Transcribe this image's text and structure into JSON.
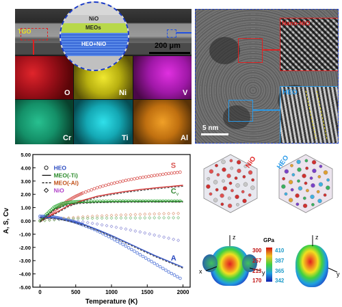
{
  "sem": {
    "tgo": "TGO",
    "layers": [
      "NiO",
      "MEOs",
      "HEO+NiO"
    ],
    "scale": "200 μm",
    "maps": [
      "O",
      "Ni",
      "V",
      "Cr",
      "Ti",
      "Al"
    ],
    "colors": {
      "O": "#c0141b",
      "Ni": "#d8d21a",
      "V": "#c020c8",
      "Cr": "#19a57a",
      "Ti": "#1bc4cf",
      "Al": "#d98618"
    }
  },
  "tem": {
    "nano_label": "Nano-NiO",
    "heo_label": "HEO",
    "scale": "5 nm"
  },
  "chart_data": {
    "type": "line",
    "xlabel": "Temperature (K)",
    "ylabel": "A, S, Cv",
    "xlim": [
      -100,
      2100
    ],
    "ylim": [
      -5,
      5
    ],
    "xticks": [
      0,
      500,
      1000,
      1500,
      2000
    ],
    "yticks": [
      "5.00",
      "4.00",
      "3.00",
      "2.00",
      "1.00",
      "0.00",
      "-1.00",
      "-2.00",
      "-3.00",
      "-4.00",
      "-5.00"
    ],
    "legend": [
      {
        "name": "HEO",
        "marker": "circle"
      },
      {
        "name": "MEO(-Ti)",
        "marker": "solid"
      },
      {
        "name": "MEO(-Al)",
        "marker": "dashed"
      },
      {
        "name": "NiO",
        "marker": "diamond"
      }
    ],
    "annotations": {
      "S": "S",
      "Cv": "C",
      "Cv_sub": "v",
      "A": "A"
    },
    "series": [
      {
        "name": "HEO S",
        "color": "#d9534f",
        "x": [
          0,
          100,
          200,
          300,
          400,
          500,
          600,
          800,
          1000,
          1200,
          1400,
          1600,
          1800,
          2000
        ],
        "y": [
          0.0,
          0.35,
          0.75,
          1.2,
          1.55,
          1.85,
          2.1,
          2.5,
          2.8,
          3.05,
          3.25,
          3.42,
          3.57,
          3.7
        ]
      },
      {
        "name": "HEO Cv",
        "color": "#3cb043",
        "x": [
          0,
          100,
          200,
          300,
          400,
          500,
          600,
          800,
          1000,
          1200,
          1400,
          1600,
          1800,
          2000
        ],
        "y": [
          0.0,
          0.55,
          1.05,
          1.3,
          1.4,
          1.44,
          1.46,
          1.48,
          1.49,
          1.5,
          1.5,
          1.5,
          1.5,
          1.5
        ]
      },
      {
        "name": "HEO A",
        "color": "#4a6fd6",
        "x": [
          0,
          100,
          200,
          300,
          400,
          500,
          600,
          800,
          1000,
          1200,
          1400,
          1600,
          1800,
          2000
        ],
        "y": [
          0.35,
          0.33,
          0.28,
          0.18,
          0.05,
          -0.1,
          -0.3,
          -0.75,
          -1.3,
          -1.9,
          -2.55,
          -3.2,
          -3.85,
          -4.45
        ]
      },
      {
        "name": "NiO S",
        "color": "#e0a080",
        "x": [
          0,
          200,
          400,
          600,
          800,
          1000,
          1200,
          1400,
          1600,
          1800,
          2000
        ],
        "y": [
          0.0,
          0.12,
          0.22,
          0.3,
          0.36,
          0.41,
          0.45,
          0.49,
          0.52,
          0.55,
          0.57
        ]
      },
      {
        "name": "NiO Cv",
        "color": "#7fbf7f",
        "x": [
          0,
          200,
          400,
          600,
          800,
          1000,
          1200,
          1400,
          1600,
          1800,
          2000
        ],
        "y": [
          0.0,
          0.08,
          0.14,
          0.18,
          0.2,
          0.21,
          0.22,
          0.22,
          0.23,
          0.23,
          0.23
        ]
      },
      {
        "name": "NiO A",
        "color": "#9090d8",
        "x": [
          0,
          200,
          400,
          600,
          800,
          1000,
          1200,
          1400,
          1600,
          1800,
          2000
        ],
        "y": [
          0.2,
          0.16,
          0.06,
          -0.08,
          -0.24,
          -0.42,
          -0.62,
          -0.84,
          -1.07,
          -1.31,
          -1.55
        ]
      },
      {
        "name": "MEO(-Ti) S",
        "color": "#d03030",
        "x": [
          0,
          200,
          400,
          600,
          800,
          1000,
          1200,
          1400,
          1600,
          1800,
          2000
        ],
        "y": [
          0.0,
          0.55,
          1.15,
          1.55,
          1.85,
          2.05,
          2.22,
          2.36,
          2.48,
          2.58,
          2.68
        ]
      },
      {
        "name": "MEO(-Ti) Cv",
        "color": "#2a8a2a",
        "x": [
          0,
          200,
          400,
          600,
          800,
          1000,
          1200,
          1400,
          1600,
          1800,
          2000
        ],
        "y": [
          0.0,
          0.9,
          1.3,
          1.4,
          1.44,
          1.46,
          1.47,
          1.48,
          1.48,
          1.48,
          1.48
        ]
      },
      {
        "name": "MEO(-Ti) A",
        "color": "#3050c0",
        "x": [
          0,
          200,
          400,
          600,
          800,
          1000,
          1200,
          1400,
          1600,
          1800,
          2000
        ],
        "y": [
          0.3,
          0.25,
          0.05,
          -0.25,
          -0.65,
          -1.1,
          -1.6,
          -2.1,
          -2.6,
          -3.05,
          -3.5
        ]
      }
    ]
  },
  "structures": {
    "nio_label": "NiO",
    "heo_label": "HEO"
  },
  "elastic": {
    "unit": "GPa",
    "left_ticks": [
      "300",
      "257",
      "213",
      "170"
    ],
    "right_ticks": [
      "410",
      "387",
      "365",
      "342"
    ],
    "axes": {
      "z": "z",
      "x": "x",
      "y": "y"
    }
  }
}
